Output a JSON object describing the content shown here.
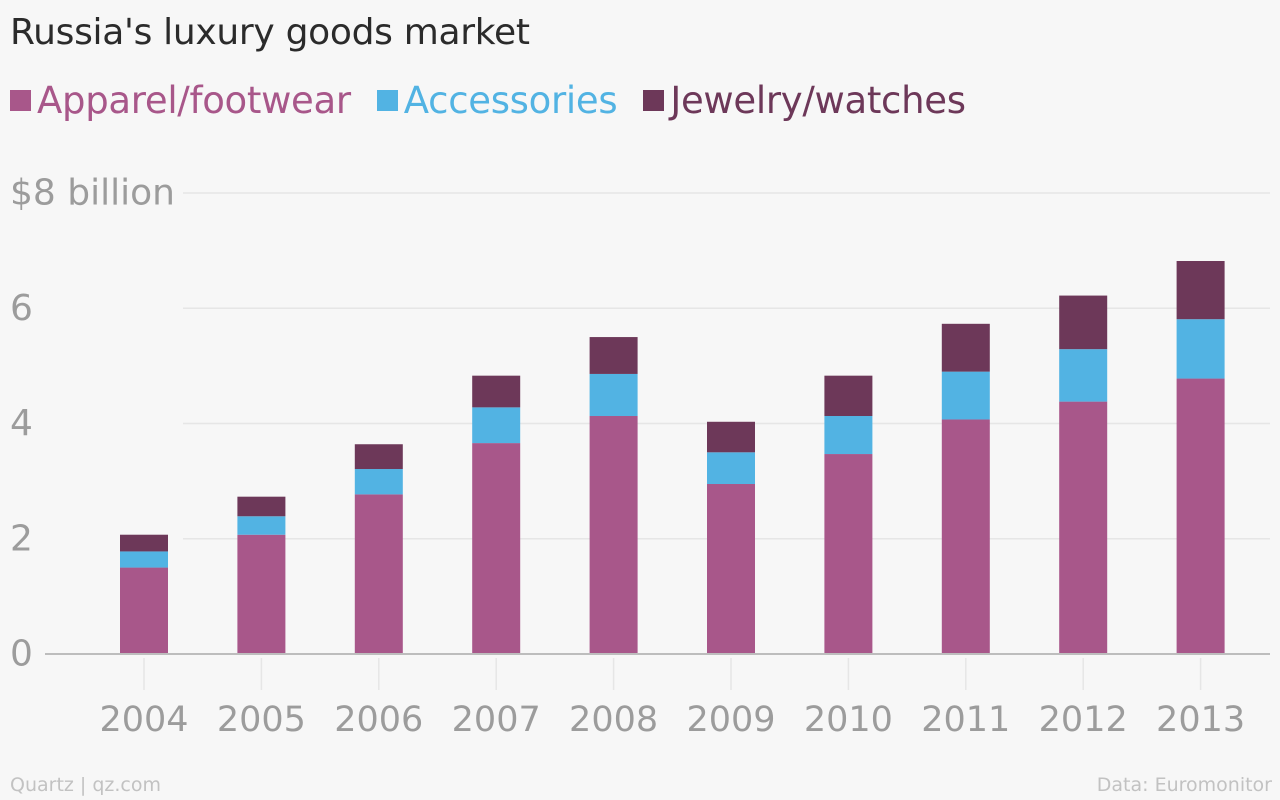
{
  "colors": {
    "background": "#f7f7f7",
    "gridline": "#e6e6e6",
    "axis": "#bdbdbd",
    "tick_text": "#9c9c9c",
    "title_text": "#2b2b2b",
    "footer_text": "#c2c2c2"
  },
  "footer": {
    "source_left": "Quartz | qz.com",
    "source_right": "Data: Euromonitor"
  },
  "chart_data": {
    "type": "bar",
    "stacked": true,
    "title": "Russia's luxury goods market",
    "categories": [
      "2004",
      "2005",
      "2006",
      "2007",
      "2008",
      "2009",
      "2010",
      "2011",
      "2012",
      "2013"
    ],
    "series": [
      {
        "name": "Apparel/footwear",
        "color": "#a8578a",
        "values": [
          1.5,
          2.07,
          2.77,
          3.66,
          4.13,
          2.95,
          3.47,
          4.07,
          4.38,
          4.78
        ]
      },
      {
        "name": "Accessories",
        "color": "#52b3e3",
        "values": [
          0.28,
          0.32,
          0.44,
          0.62,
          0.73,
          0.55,
          0.66,
          0.83,
          0.91,
          1.03
        ]
      },
      {
        "name": "Jewelry/watches",
        "color": "#6d3859",
        "values": [
          0.29,
          0.34,
          0.43,
          0.55,
          0.64,
          0.53,
          0.7,
          0.83,
          0.93,
          1.01
        ]
      }
    ],
    "yaxis": {
      "ylim": [
        0,
        8
      ],
      "ticks": [
        {
          "value": 0,
          "label": "0"
        },
        {
          "value": 2,
          "label": "2"
        },
        {
          "value": 4,
          "label": "4"
        },
        {
          "value": 6,
          "label": "6"
        },
        {
          "value": 8,
          "label": "$8 billion"
        }
      ]
    },
    "grid": true,
    "legend": "top-left",
    "xlabel": "",
    "ylabel": ""
  }
}
